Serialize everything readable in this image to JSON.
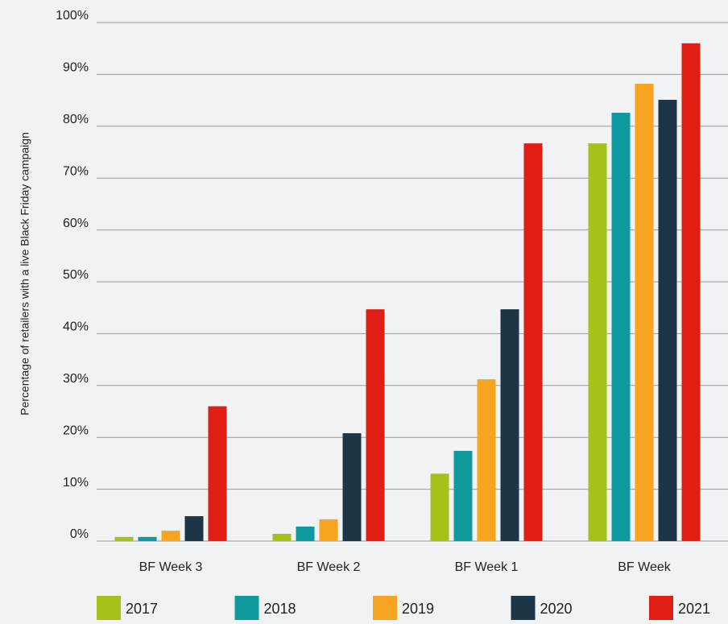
{
  "chart_data": {
    "type": "bar",
    "y_label": "Percentage of retailers with a live Black Friday campaign",
    "categories": [
      "BF Week 3",
      "BF Week 2",
      "BF Week 1",
      "BF Week"
    ],
    "series": [
      {
        "name": "2017",
        "color": "#a5c21a",
        "values": [
          0.8,
          1.4,
          13.0,
          76.7
        ]
      },
      {
        "name": "2018",
        "color": "#0e9a9e",
        "values": [
          0.8,
          2.8,
          17.4,
          82.6
        ]
      },
      {
        "name": "2019",
        "color": "#f7a520",
        "values": [
          2.0,
          4.2,
          31.2,
          88.2
        ]
      },
      {
        "name": "2020",
        "color": "#1c3547",
        "values": [
          4.8,
          20.8,
          44.7,
          85.1
        ]
      },
      {
        "name": "2021",
        "color": "#e01e14",
        "values": [
          26.0,
          44.7,
          76.7,
          96.0
        ]
      }
    ],
    "ylim": [
      0,
      100
    ],
    "yticks": [
      {
        "value": 0,
        "label": "0%"
      },
      {
        "value": 10,
        "label": "10%"
      },
      {
        "value": 20,
        "label": "20%"
      },
      {
        "value": 30,
        "label": "30%"
      },
      {
        "value": 40,
        "label": "40%"
      },
      {
        "value": 50,
        "label": "50%"
      },
      {
        "value": 60,
        "label": "60%"
      },
      {
        "value": 70,
        "label": "70%"
      },
      {
        "value": 80,
        "label": "80%"
      },
      {
        "value": 90,
        "label": "90%"
      },
      {
        "value": 100,
        "label": "100%"
      }
    ],
    "grid": true,
    "legend": "bottom"
  }
}
